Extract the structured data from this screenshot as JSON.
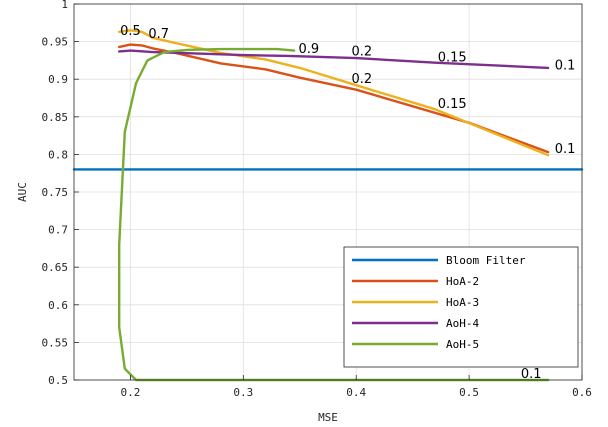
{
  "chart_data": {
    "type": "line",
    "title": "",
    "xlabel": "MSE",
    "ylabel": "AUC",
    "xlim": [
      0.15,
      0.6
    ],
    "ylim": [
      0.5,
      1.0
    ],
    "xticks": [
      0.2,
      0.3,
      0.4,
      0.5,
      0.6
    ],
    "xtick_labels": [
      "0.2",
      "0.3",
      "0.4",
      "0.5",
      "0.6"
    ],
    "yticks": [
      0.5,
      0.55,
      0.6,
      0.65,
      0.7,
      0.75,
      0.8,
      0.85,
      0.9,
      0.95,
      1.0
    ],
    "ytick_labels": [
      "0.5",
      "0.55",
      "0.6",
      "0.65",
      "0.7",
      "0.75",
      "0.8",
      "0.85",
      "0.9",
      "0.95",
      "1"
    ],
    "grid": true,
    "legend_position": "bottom-right",
    "series": [
      {
        "name": "Bloom Filter",
        "color": "#0072BD",
        "x": [
          0.15,
          0.6
        ],
        "y": [
          0.78,
          0.78
        ]
      },
      {
        "name": "HoA-2",
        "color": "#D95319",
        "x": [
          0.19,
          0.2,
          0.21,
          0.22,
          0.24,
          0.28,
          0.32,
          0.35,
          0.4,
          0.5,
          0.57
        ],
        "y": [
          0.943,
          0.946,
          0.945,
          0.941,
          0.935,
          0.921,
          0.913,
          0.902,
          0.886,
          0.842,
          0.803
        ]
      },
      {
        "name": "HoA-3",
        "color": "#EDB120",
        "x": [
          0.19,
          0.2,
          0.21,
          0.22,
          0.24,
          0.28,
          0.32,
          0.35,
          0.4,
          0.47,
          0.57
        ],
        "y": [
          0.963,
          0.965,
          0.963,
          0.955,
          0.948,
          0.935,
          0.926,
          0.915,
          0.892,
          0.86,
          0.799
        ]
      },
      {
        "name": "AoH-4",
        "color": "#7E2F8E",
        "x": [
          0.19,
          0.2,
          0.22,
          0.26,
          0.3,
          0.34,
          0.4,
          0.47,
          0.57
        ],
        "y": [
          0.937,
          0.938,
          0.936,
          0.934,
          0.932,
          0.931,
          0.928,
          0.922,
          0.915
        ]
      },
      {
        "name": "AoH-5",
        "color": "#77AC30",
        "x": [
          0.57,
          0.205,
          0.195,
          0.19,
          0.19,
          0.195,
          0.205,
          0.215,
          0.23,
          0.25,
          0.28,
          0.31,
          0.33,
          0.345
        ],
        "y": [
          0.5,
          0.5,
          0.515,
          0.57,
          0.68,
          0.83,
          0.895,
          0.925,
          0.936,
          0.939,
          0.94,
          0.94,
          0.94,
          0.938
        ]
      }
    ],
    "annotations": [
      {
        "text": "0.5",
        "x": 0.2,
        "y": 0.964
      },
      {
        "text": "0.7",
        "x": 0.225,
        "y": 0.96
      },
      {
        "text": "0.9",
        "x": 0.358,
        "y": 0.94
      },
      {
        "text": "0.2",
        "x": 0.405,
        "y": 0.937
      },
      {
        "text": "0.15",
        "x": 0.485,
        "y": 0.929
      },
      {
        "text": "0.1",
        "x": 0.585,
        "y": 0.918
      },
      {
        "text": "0.2",
        "x": 0.405,
        "y": 0.9
      },
      {
        "text": "0.15",
        "x": 0.485,
        "y": 0.867
      },
      {
        "text": "0.1",
        "x": 0.585,
        "y": 0.807
      },
      {
        "text": "0.1",
        "x": 0.555,
        "y": 0.508
      }
    ]
  }
}
